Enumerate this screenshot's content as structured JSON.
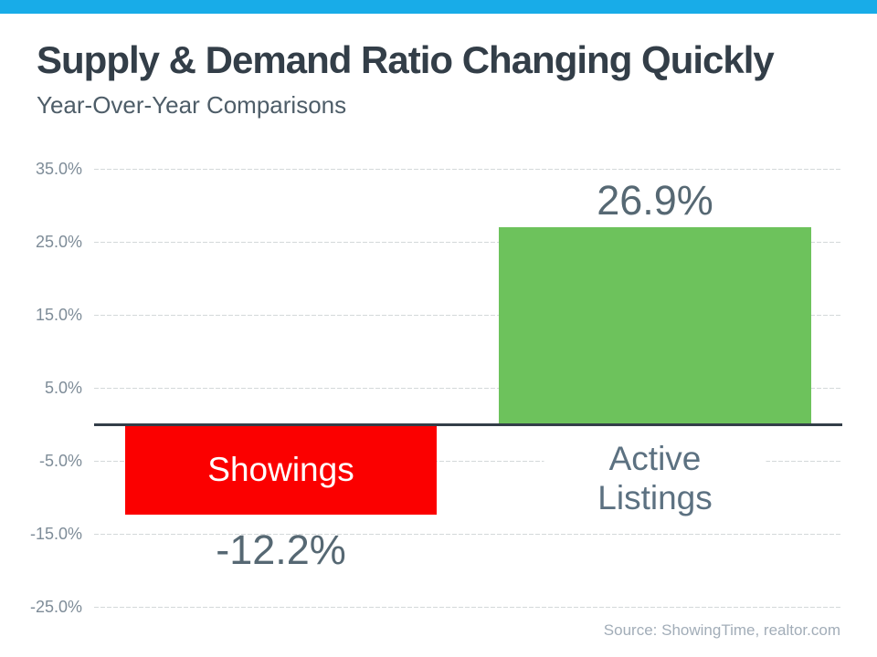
{
  "page": {
    "accent_bar_color": "#18ace8",
    "background_color": "#ffffff"
  },
  "header": {
    "title": "Supply & Demand Ratio Changing Quickly",
    "subtitle": "Year-Over-Year Comparisons"
  },
  "footer": {
    "source": "Source: ShowingTime, realtor.com"
  },
  "chart_data": {
    "type": "bar",
    "title": "Supply & Demand Ratio Changing Quickly",
    "subtitle": "Year-Over-Year Comparisons",
    "categories": [
      "Showings",
      "Active Listings"
    ],
    "values": [
      -12.2,
      26.9
    ],
    "value_labels": [
      "-12.2%",
      "26.9%"
    ],
    "bar_colors": [
      "#fb0000",
      "#6dc25c"
    ],
    "xlabel": "",
    "ylabel": "",
    "ylim": [
      -25,
      35
    ],
    "ytick_values": [
      35,
      25,
      15,
      5,
      -5,
      -15,
      -25
    ],
    "ytick_labels": [
      "35.0%",
      "25.0%",
      "15.0%",
      "5.0%",
      "-5.0%",
      "-15.0%",
      "-25.0%"
    ],
    "grid": true,
    "legend": false,
    "zero_line_color": "#333e48",
    "gridline_color": "#d4d8da",
    "value_label_color": "#566873",
    "category_label_color": "#5c7181"
  }
}
